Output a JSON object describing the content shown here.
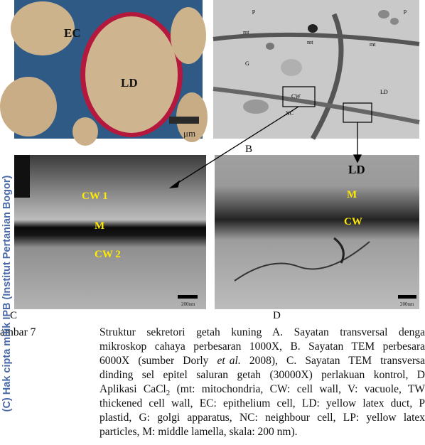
{
  "figure": {
    "panel_a": {
      "labels": [
        "EC",
        "LD"
      ],
      "scale": "μm"
    },
    "panel_b": {
      "letter": "B",
      "labels": [
        "p",
        "mt",
        "mt",
        "mt",
        "p",
        "G",
        "CW",
        "NC",
        "LD"
      ]
    },
    "panel_c": {
      "letter": "C",
      "labels": [
        "CW 1",
        "M",
        "CW 2"
      ],
      "scale": "200nm"
    },
    "panel_d": {
      "letter": "D",
      "outside_label": "LD",
      "labels": [
        "M",
        "CW"
      ],
      "scale": "200nm"
    }
  },
  "caption": {
    "number": "ambar  7",
    "lines": [
      [
        "Struktur  sekretori  getah  kuning  A.  Sayatan  transversal  denga"
      ],
      [
        "mikroskop cahaya perbesaran 1000X, B. Sayatan TEM perbesara"
      ],
      [
        "6000X  (sumber  Dorly  ",
        "et al.",
        "  2008),  C.  Sayatan  TEM  transversa"
      ],
      [
        "dinding  sel  epitel  saluran  getah  (30000X)  perlakuan  kontrol,  D"
      ],
      [
        "Aplikasi CaCl",
        "2",
        " (mt: mitochondria, CW: cell wall, V: vacuole, TW"
      ],
      [
        "thickened cell wall, EC: epithelium cell, LD: yellow latex duct, P"
      ],
      [
        "plastid,  G:  golgi  apparatus,  NC:  neighbour  cell,  LP:  yellow  latex"
      ],
      [
        "particles, M: middle lamella, skala: 200 nm)."
      ]
    ]
  },
  "watermark": "(C) Hak cipta milik IPB (Institut Pertanian Bogor)"
}
